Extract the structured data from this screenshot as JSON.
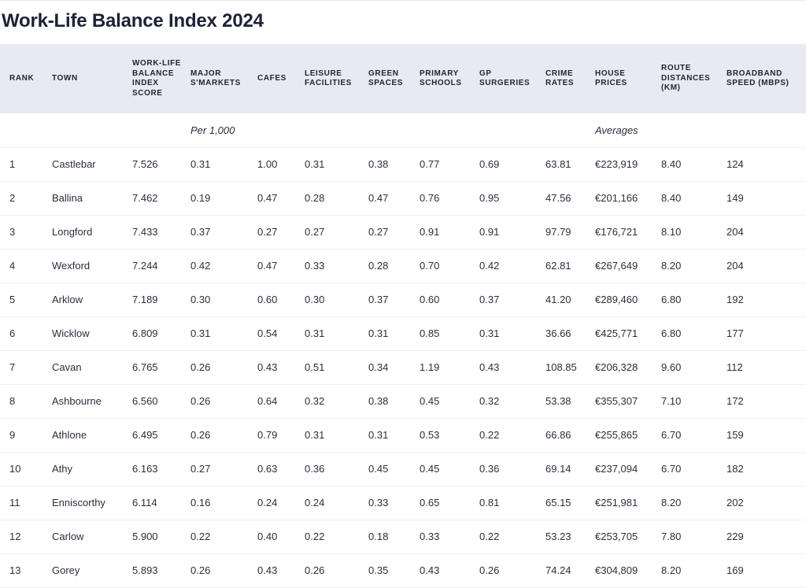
{
  "title": "Work-Life Balance Index 2024",
  "headers": [
    "RANK",
    "TOWN",
    "WORK-LIFE BALANCE INDEX SCORE",
    "MAJOR S'MARKETS",
    "CAFES",
    "LEISURE FACILITIES",
    "GREEN SPACES",
    "PRIMARY SCHOOLS",
    "GP SURGERIES",
    "CRIME RATES",
    "HOUSE PRICES",
    "ROUTE DISTANCES (KM)",
    "BROADBAND SPEED (MBPS)"
  ],
  "subheader": {
    "per": "Per 1,000",
    "averages": "Averages"
  },
  "rows": [
    [
      "1",
      "Castlebar",
      "7.526",
      "0.31",
      "1.00",
      "0.31",
      "0.38",
      "0.77",
      "0.69",
      "63.81",
      "€223,919",
      "8.40",
      "124"
    ],
    [
      "2",
      "Ballina",
      "7.462",
      "0.19",
      "0.47",
      "0.28",
      "0.47",
      "0.76",
      "0.95",
      "47.56",
      "€201,166",
      "8.40",
      "149"
    ],
    [
      "3",
      "Longford",
      "7.433",
      "0.37",
      "0.27",
      "0.27",
      "0.27",
      "0.91",
      "0.91",
      "97.79",
      "€176,721",
      "8.10",
      "204"
    ],
    [
      "4",
      "Wexford",
      "7.244",
      "0.42",
      "0.47",
      "0.33",
      "0.28",
      "0.70",
      "0.42",
      "62.81",
      "€267,649",
      "8.20",
      "204"
    ],
    [
      "5",
      "Arklow",
      "7.189",
      "0.30",
      "0.60",
      "0.30",
      "0.37",
      "0.60",
      "0.37",
      "41.20",
      "€289,460",
      "6.80",
      "192"
    ],
    [
      "6",
      "Wicklow",
      "6.809",
      "0.31",
      "0.54",
      "0.31",
      "0.31",
      "0.85",
      "0.31",
      "36.66",
      "€425,771",
      "6.80",
      "177"
    ],
    [
      "7",
      "Cavan",
      "6.765",
      "0.26",
      "0.43",
      "0.51",
      "0.34",
      "1.19",
      "0.43",
      "108.85",
      "€206,328",
      "9.60",
      "112"
    ],
    [
      "8",
      "Ashbourne",
      "6.560",
      "0.26",
      "0.64",
      "0.32",
      "0.38",
      "0.45",
      "0.32",
      "53.38",
      "€355,307",
      "7.10",
      "172"
    ],
    [
      "9",
      "Athlone",
      "6.495",
      "0.26",
      "0.79",
      "0.31",
      "0.31",
      "0.53",
      "0.22",
      "66.86",
      "€255,865",
      "6.70",
      "159"
    ],
    [
      "10",
      "Athy",
      "6.163",
      "0.27",
      "0.63",
      "0.36",
      "0.45",
      "0.45",
      "0.36",
      "69.14",
      "€237,094",
      "6.70",
      "182"
    ],
    [
      "11",
      "Enniscorthy",
      "6.114",
      "0.16",
      "0.24",
      "0.24",
      "0.33",
      "0.65",
      "0.81",
      "65.15",
      "€251,981",
      "8.20",
      "202"
    ],
    [
      "12",
      "Carlow",
      "5.900",
      "0.22",
      "0.40",
      "0.22",
      "0.18",
      "0.33",
      "0.22",
      "53.23",
      "€253,705",
      "7.80",
      "229"
    ],
    [
      "13",
      "Gorey",
      "5.893",
      "0.26",
      "0.43",
      "0.26",
      "0.35",
      "0.43",
      "0.26",
      "74.24",
      "€304,809",
      "8.20",
      "169"
    ]
  ]
}
